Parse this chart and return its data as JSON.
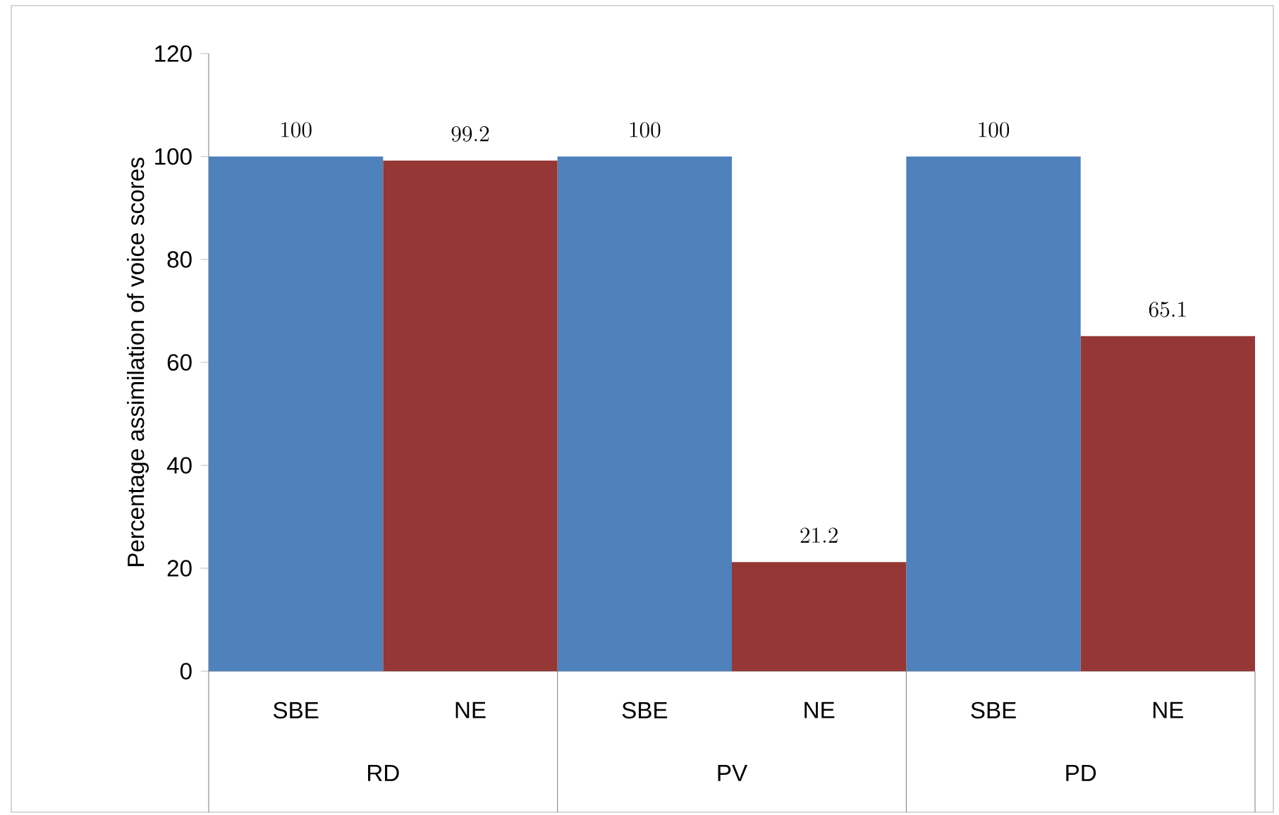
{
  "chart_data": {
    "type": "bar",
    "ylabel": "Percentage assimilation of voice  scores",
    "categories": [
      "RD",
      "PV",
      "PD"
    ],
    "series": [
      {
        "name": "SBE",
        "color": "#4f81bd",
        "values": [
          100,
          100,
          100
        ]
      },
      {
        "name": "NE",
        "color": "#953735",
        "values": [
          99.2,
          21.2,
          65.1
        ]
      }
    ],
    "ylim": [
      0,
      120
    ],
    "yticks": [
      0,
      20,
      40,
      60,
      80,
      100,
      120
    ],
    "data_labels": true
  }
}
